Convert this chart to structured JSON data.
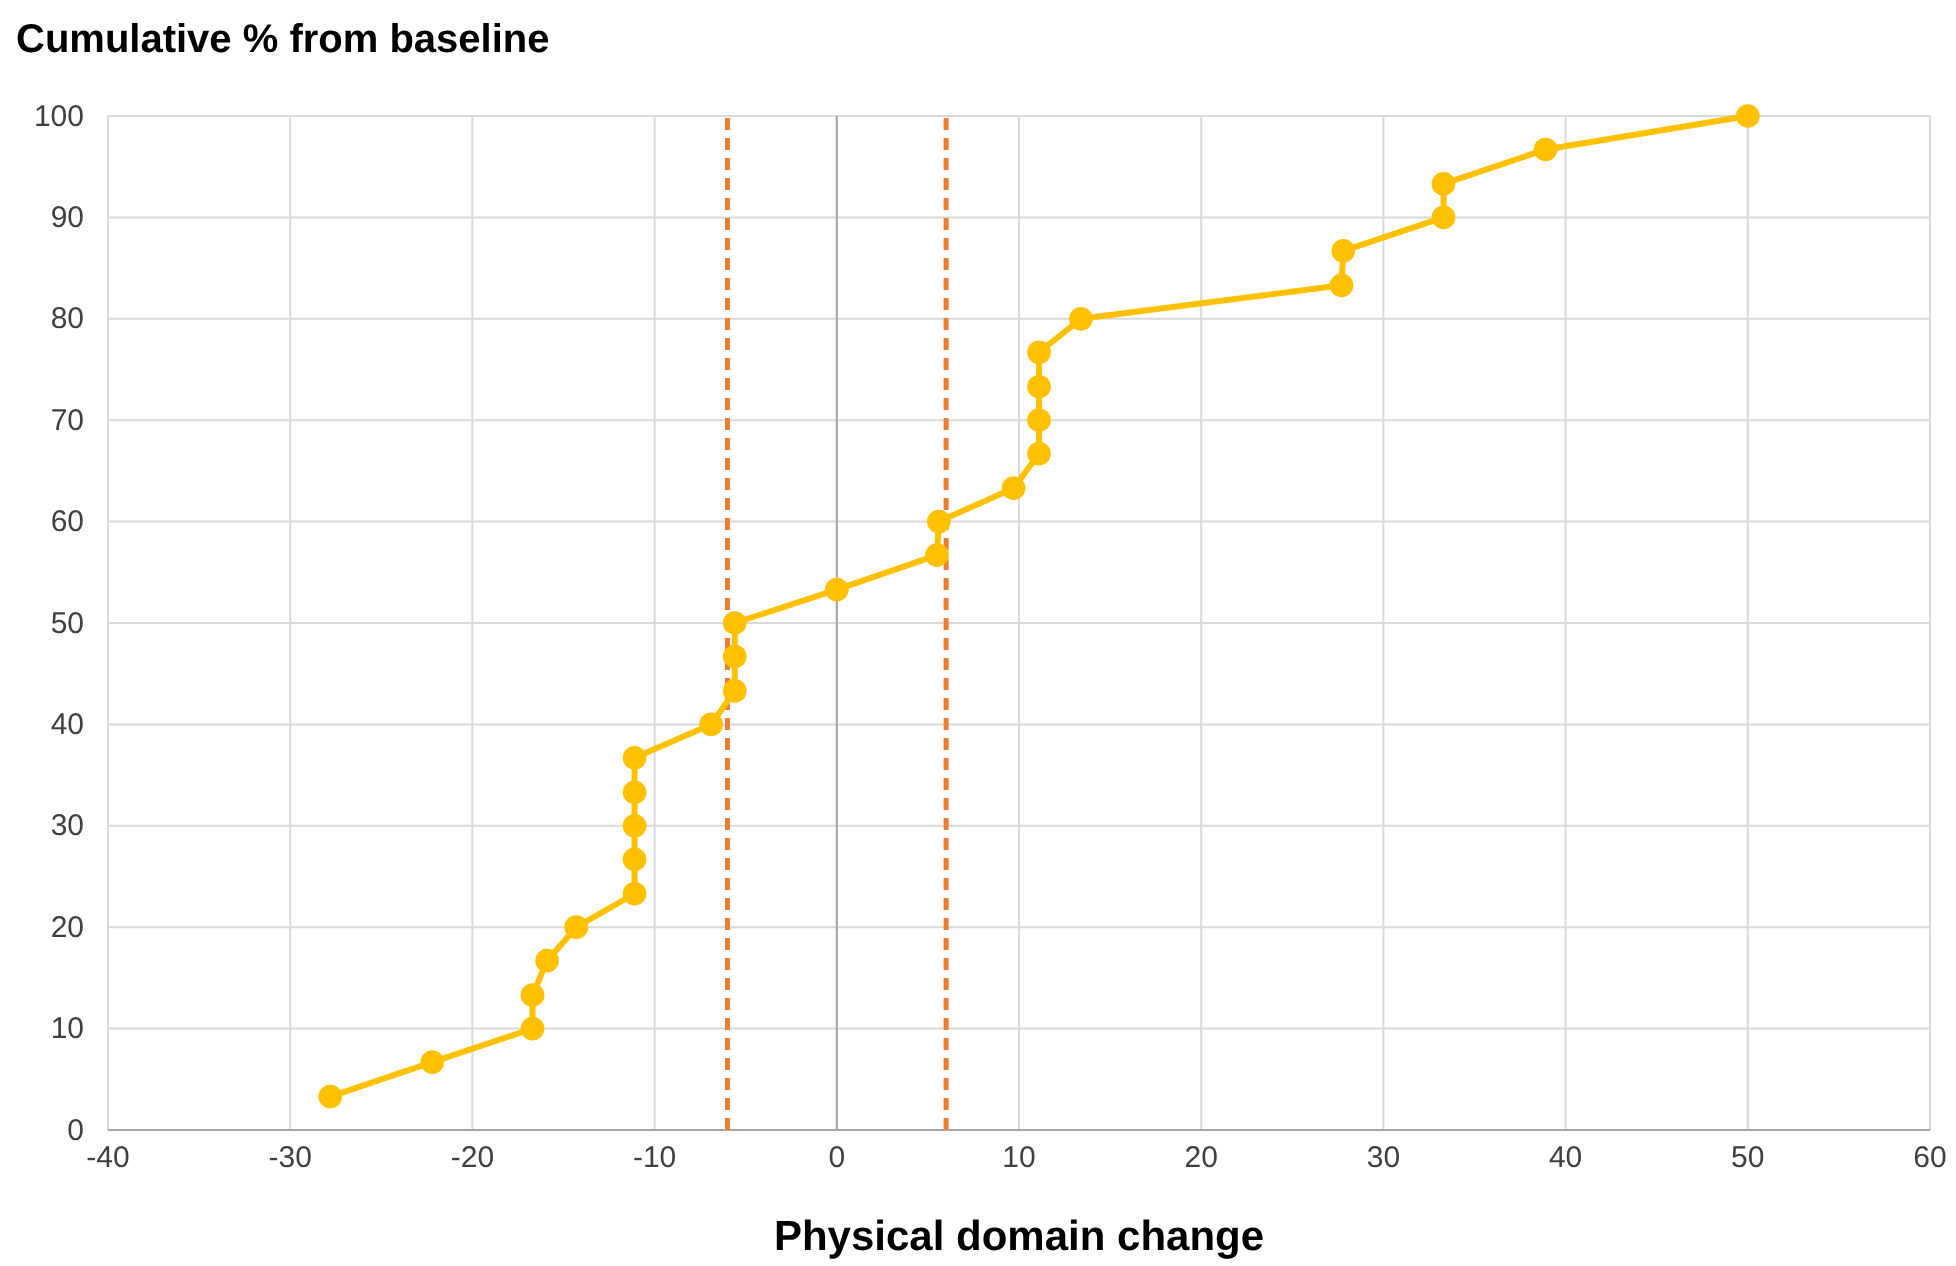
{
  "chart_data": {
    "type": "line",
    "ylabel": "Cumulative % from baseline",
    "xlabel": "Physical domain change",
    "xlim": [
      -40,
      60
    ],
    "xticks": [
      -40,
      -30,
      -20,
      -10,
      0,
      10,
      20,
      30,
      40,
      50,
      60
    ],
    "ylim": [
      0,
      100
    ],
    "yticks": [
      0,
      10,
      20,
      30,
      40,
      50,
      60,
      70,
      80,
      90,
      100
    ],
    "grid": true,
    "marker": "circle",
    "line_style": "solid",
    "series": [
      {
        "color": "#ffc000",
        "x": [
          -27.8,
          -22.2,
          -16.7,
          -16.7,
          -15.9,
          -14.3,
          -11.1,
          -11.1,
          -11.1,
          -11.1,
          -11.1,
          -6.9,
          -5.6,
          -5.6,
          -5.6,
          0,
          5.5,
          5.6,
          9.7,
          11.1,
          11.1,
          11.1,
          11.1,
          13.4,
          27.7,
          27.8,
          33.3,
          33.3,
          38.9,
          50
        ],
        "values": [
          3.3,
          6.7,
          10,
          13.3,
          16.7,
          20,
          23.3,
          26.7,
          30,
          33.3,
          36.7,
          40,
          43.3,
          46.7,
          50,
          53.3,
          56.7,
          60,
          63.3,
          66.7,
          70,
          73.3,
          76.7,
          80,
          83.3,
          86.7,
          90,
          93.3,
          96.7,
          100
        ]
      }
    ],
    "ref_lines": [
      {
        "axis": "x",
        "value": -6,
        "color": "#ed7d31",
        "line_style": "dashed"
      },
      {
        "axis": "x",
        "value": 6,
        "color": "#ed7d31",
        "line_style": "dashed"
      }
    ]
  }
}
